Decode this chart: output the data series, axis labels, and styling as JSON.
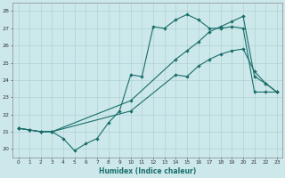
{
  "xlabel": "Humidex (Indice chaleur)",
  "xlim": [
    -0.5,
    23.5
  ],
  "ylim": [
    19.5,
    28.5
  ],
  "xticks": [
    0,
    1,
    2,
    3,
    4,
    5,
    6,
    7,
    8,
    9,
    10,
    11,
    12,
    13,
    14,
    15,
    16,
    17,
    18,
    19,
    20,
    21,
    22,
    23
  ],
  "yticks": [
    20,
    21,
    22,
    23,
    24,
    25,
    26,
    27,
    28
  ],
  "bg_color": "#cce8eb",
  "grid_color": "#aaccce",
  "line_color": "#1a6e6a",
  "line1_x": [
    0,
    1,
    2,
    3,
    4,
    5,
    6,
    7,
    8,
    9,
    10,
    11,
    12,
    13,
    14,
    15,
    16,
    17,
    18,
    19,
    20,
    21,
    22,
    23
  ],
  "line1_y": [
    21.2,
    21.1,
    21.0,
    21.0,
    20.6,
    19.9,
    20.3,
    20.6,
    21.5,
    22.2,
    24.3,
    24.2,
    27.1,
    27.0,
    27.5,
    27.8,
    27.5,
    27.0,
    27.0,
    27.1,
    27.0,
    23.3,
    23.3,
    23.3
  ],
  "line2_x": [
    0,
    1,
    2,
    3,
    10,
    14,
    15,
    16,
    17,
    18,
    19,
    20,
    21,
    22,
    23
  ],
  "line2_y": [
    21.2,
    21.1,
    21.0,
    21.0,
    22.2,
    24.3,
    24.2,
    24.8,
    25.2,
    25.5,
    25.7,
    25.8,
    24.5,
    23.8,
    23.3
  ],
  "line3_x": [
    0,
    1,
    2,
    3,
    10,
    14,
    15,
    16,
    17,
    18,
    19,
    20,
    21,
    22,
    23
  ],
  "line3_y": [
    21.2,
    21.1,
    21.0,
    21.0,
    22.8,
    25.2,
    25.7,
    26.2,
    26.8,
    27.1,
    27.4,
    27.7,
    24.2,
    23.8,
    23.3
  ]
}
